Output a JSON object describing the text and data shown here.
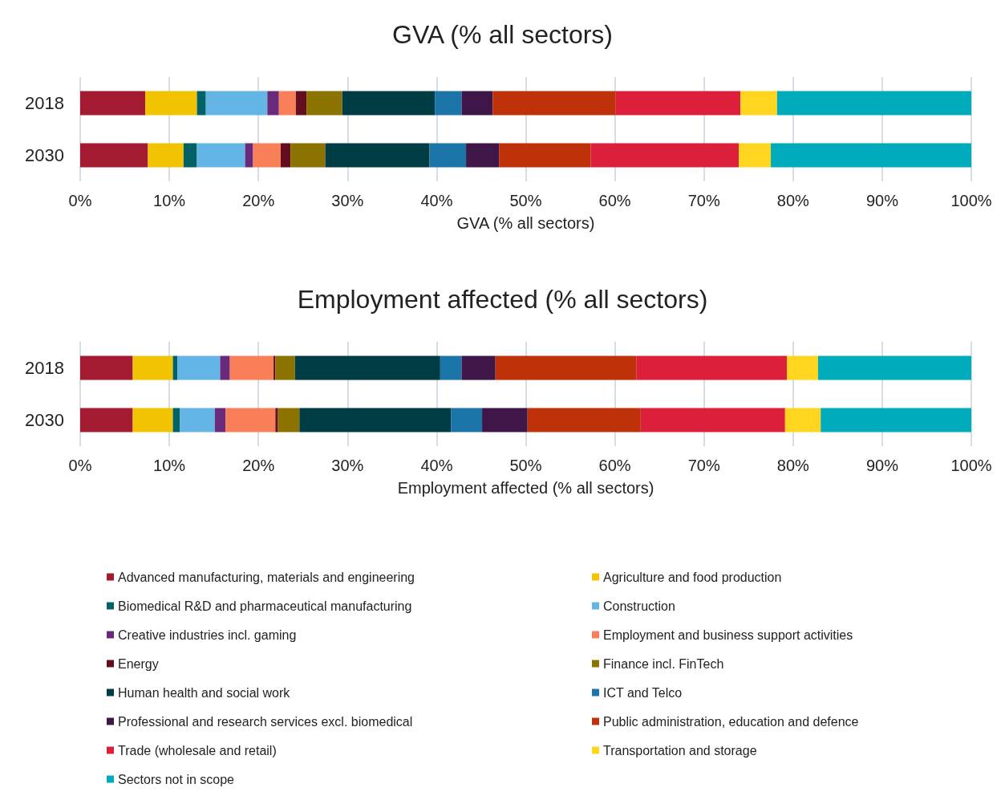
{
  "chart_data": [
    {
      "type": "bar",
      "title": "GVA (% all sectors)",
      "xlabel": "GVA (% all sectors)",
      "orientation": "horizontal",
      "stacked": true,
      "categories": [
        "2018",
        "2030"
      ],
      "xlim": [
        0,
        100
      ],
      "xticks": [
        {
          "value": 0,
          "label": "0%"
        },
        {
          "value": 10,
          "label": "10%"
        },
        {
          "value": 20,
          "label": "20%"
        },
        {
          "value": 30,
          "label": "30%"
        },
        {
          "value": 40,
          "label": "40%"
        },
        {
          "value": 50,
          "label": "50%"
        },
        {
          "value": 60,
          "label": "60%"
        },
        {
          "value": 70,
          "label": "70%"
        },
        {
          "value": 80,
          "label": "80%"
        },
        {
          "value": 90,
          "label": "90%"
        },
        {
          "value": 100,
          "label": "100%"
        }
      ],
      "grid": "x",
      "legend": false,
      "series": [
        {
          "color": "#a31b30",
          "values": [
            7.3,
            7.6
          ]
        },
        {
          "color": "#f2c300",
          "values": [
            5.8,
            4.0
          ]
        },
        {
          "color": "#006166",
          "values": [
            1.0,
            1.5
          ]
        },
        {
          "color": "#62b5e5",
          "values": [
            6.9,
            5.4
          ]
        },
        {
          "color": "#6a2a7b",
          "values": [
            1.3,
            0.9
          ]
        },
        {
          "color": "#f87f58",
          "values": [
            1.9,
            3.1
          ]
        },
        {
          "color": "#620e1f",
          "values": [
            1.2,
            1.1
          ]
        },
        {
          "color": "#8c7300",
          "values": [
            4.0,
            3.9
          ]
        },
        {
          "color": "#003c44",
          "values": [
            10.4,
            11.7
          ]
        },
        {
          "color": "#1c75a8",
          "values": [
            3.0,
            4.1
          ]
        },
        {
          "color": "#3e1748",
          "values": [
            3.5,
            3.7
          ]
        },
        {
          "color": "#bf3108",
          "values": [
            13.8,
            10.3
          ]
        },
        {
          "color": "#dc203c",
          "values": [
            14.0,
            16.6
          ]
        },
        {
          "color": "#ffd520",
          "values": [
            4.1,
            3.6
          ]
        },
        {
          "color": "#00acbc",
          "values": [
            21.8,
            22.5
          ]
        }
      ]
    },
    {
      "type": "bar",
      "title": "Employment affected (% all sectors)",
      "xlabel": "Employment affected (% all sectors)",
      "orientation": "horizontal",
      "stacked": true,
      "categories": [
        "2018",
        "2030"
      ],
      "xlim": [
        0,
        100
      ],
      "xticks": [
        {
          "value": 0,
          "label": "0%"
        },
        {
          "value": 10,
          "label": "10%"
        },
        {
          "value": 20,
          "label": "20%"
        },
        {
          "value": 30,
          "label": "30%"
        },
        {
          "value": 40,
          "label": "40%"
        },
        {
          "value": 50,
          "label": "50%"
        },
        {
          "value": 60,
          "label": "60%"
        },
        {
          "value": 70,
          "label": "70%"
        },
        {
          "value": 80,
          "label": "80%"
        },
        {
          "value": 90,
          "label": "90%"
        },
        {
          "value": 100,
          "label": "100%"
        }
      ],
      "grid": "x",
      "legend": "bottom",
      "series": [
        {
          "name": "Advanced manufacturing, materials and engineering",
          "color": "#a31b30",
          "values": [
            5.9,
            5.9
          ]
        },
        {
          "name": "Agriculture and food production",
          "color": "#f2c300",
          "values": [
            4.5,
            4.5
          ]
        },
        {
          "name": "Biomedical R&D and pharmaceutical manufacturing",
          "color": "#006166",
          "values": [
            0.5,
            0.8
          ]
        },
        {
          "name": "Construction",
          "color": "#62b5e5",
          "values": [
            4.8,
            3.9
          ]
        },
        {
          "name": "Creative industries incl. gaming",
          "color": "#6a2a7b",
          "values": [
            1.1,
            1.2
          ]
        },
        {
          "name": "Employment and business support activities",
          "color": "#f87f58",
          "values": [
            4.9,
            5.6
          ]
        },
        {
          "name": "Energy",
          "color": "#620e1f",
          "values": [
            0.2,
            0.3
          ]
        },
        {
          "name": "Finance incl. FinTech",
          "color": "#8c7300",
          "values": [
            2.2,
            2.4
          ]
        },
        {
          "name": "Human health and social work",
          "color": "#003c44",
          "values": [
            16.3,
            17.0
          ]
        },
        {
          "name": "ICT and Telco",
          "color": "#1c75a8",
          "values": [
            2.4,
            3.5
          ]
        },
        {
          "name": "Professional and research services excl. biomedical",
          "color": "#3e1748",
          "values": [
            3.8,
            5.1
          ]
        },
        {
          "name": "Public administration, education and defence",
          "color": "#bf3108",
          "values": [
            15.8,
            12.7
          ]
        },
        {
          "name": "Trade (wholesale and retail)",
          "color": "#dc203c",
          "values": [
            16.9,
            16.2
          ]
        },
        {
          "name": "Transportation and storage",
          "color": "#ffd520",
          "values": [
            3.5,
            4.0
          ]
        },
        {
          "name": "Sectors not in scope",
          "color": "#00acbc",
          "values": [
            17.2,
            16.9
          ]
        }
      ]
    }
  ]
}
